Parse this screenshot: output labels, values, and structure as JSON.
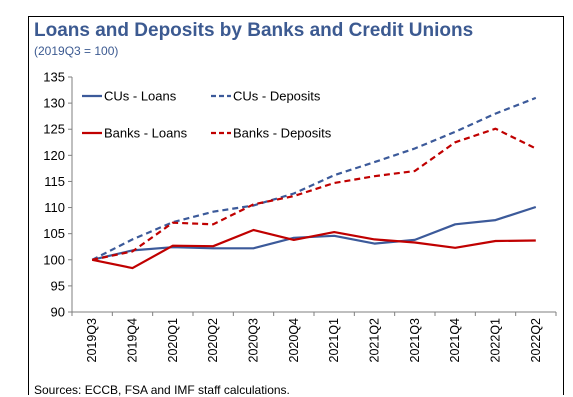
{
  "title": "Loans and Deposits by Banks and Credit Unions",
  "subtitle": "(2019Q3 = 100)",
  "source": "Sources: ECCB, FSA and IMF staff calculations.",
  "colors": {
    "cus": "#3c5a9a",
    "banks": "#c00000",
    "title": "#3c5a91"
  },
  "chart_data": {
    "type": "line",
    "categories": [
      "2019Q3",
      "2019Q4",
      "2020Q1",
      "2020Q2",
      "2020Q3",
      "2020Q4",
      "2021Q1",
      "2021Q2",
      "2021Q3",
      "2021Q4",
      "2022Q1",
      "2022Q2"
    ],
    "ylim": [
      90,
      135
    ],
    "yticks": [
      90,
      95,
      100,
      105,
      110,
      115,
      120,
      125,
      130,
      135
    ],
    "grid": false,
    "legend": "top-left, two rows",
    "series": [
      {
        "name": "CUs - Loans",
        "color": "#3c5a9a",
        "dash": "solid",
        "values": [
          100,
          101.8,
          102.4,
          102.2,
          102.2,
          104.2,
          104.6,
          103.1,
          103.8,
          106.8,
          107.6,
          110.1
        ]
      },
      {
        "name": "CUs - Deposits",
        "color": "#3c5a9a",
        "dash": "dashed",
        "values": [
          100,
          103.9,
          107.2,
          109.2,
          110.4,
          112.7,
          116.2,
          118.7,
          121.3,
          124.5,
          128.0,
          131.0
        ]
      },
      {
        "name": "Banks - Loans",
        "color": "#c00000",
        "dash": "solid",
        "values": [
          100,
          98.4,
          102.7,
          102.6,
          105.7,
          103.8,
          105.3,
          103.9,
          103.3,
          102.3,
          103.6,
          103.7
        ]
      },
      {
        "name": "Banks - Deposits",
        "color": "#c00000",
        "dash": "dashed",
        "values": [
          100,
          101.6,
          107.1,
          106.8,
          110.6,
          112.2,
          114.7,
          116.0,
          117.0,
          122.5,
          125.1,
          121.3
        ]
      }
    ]
  }
}
